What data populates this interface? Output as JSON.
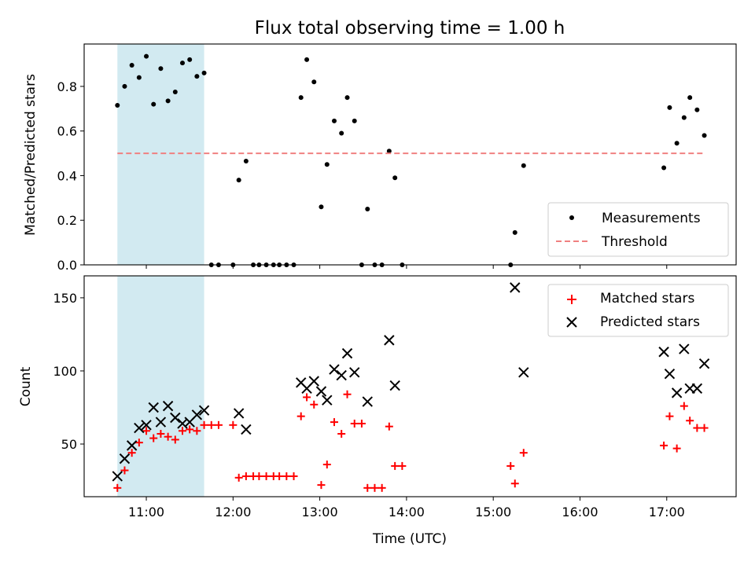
{
  "title": "Flux total observing time = 1.00 h",
  "colors": {
    "shade": "#add8e6",
    "threshold": "#f08080",
    "matched": "#ff0000",
    "predicted": "#000000",
    "measurement": "#000000"
  },
  "chart_data": [
    {
      "type": "scatter",
      "ylabel": "Matched/Predicted stars",
      "ylim": [
        0,
        0.99
      ],
      "yticks": [
        0.0,
        0.2,
        0.4,
        0.6,
        0.8
      ],
      "ytick_labels": [
        "0.0",
        "0.2",
        "0.4",
        "0.6",
        "0.8"
      ],
      "xlim": [
        "10:17",
        "17:48"
      ],
      "xticks": [
        "11:00",
        "12:00",
        "13:00",
        "14:00",
        "15:00",
        "16:00",
        "17:00"
      ],
      "shaded_span": [
        "10:40",
        "11:40"
      ],
      "legend_placement": "lower-right",
      "series": [
        {
          "name": "Measurements",
          "marker": "dot",
          "points": [
            [
              "10:40",
              0.715
            ],
            [
              "10:45",
              0.8
            ],
            [
              "10:50",
              0.895
            ],
            [
              "10:55",
              0.84
            ],
            [
              "11:00",
              0.935
            ],
            [
              "11:05",
              0.72
            ],
            [
              "11:10",
              0.88
            ],
            [
              "11:15",
              0.735
            ],
            [
              "11:20",
              0.775
            ],
            [
              "11:25",
              0.905
            ],
            [
              "11:30",
              0.92
            ],
            [
              "11:35",
              0.845
            ],
            [
              "11:40",
              0.86
            ],
            [
              "11:45",
              0.0
            ],
            [
              "11:50",
              0.0
            ],
            [
              "12:00",
              0.0
            ],
            [
              "12:04",
              0.38
            ],
            [
              "12:09",
              0.465
            ],
            [
              "12:14",
              0.0
            ],
            [
              "12:18",
              0.0
            ],
            [
              "12:23",
              0.0
            ],
            [
              "12:28",
              0.0
            ],
            [
              "12:32",
              0.0
            ],
            [
              "12:37",
              0.0
            ],
            [
              "12:42",
              0.0
            ],
            [
              "12:47",
              0.75
            ],
            [
              "12:51",
              0.92
            ],
            [
              "12:56",
              0.82
            ],
            [
              "13:01",
              0.26
            ],
            [
              "13:05",
              0.45
            ],
            [
              "13:10",
              0.645
            ],
            [
              "13:15",
              0.59
            ],
            [
              "13:19",
              0.75
            ],
            [
              "13:24",
              0.645
            ],
            [
              "13:29",
              0.0
            ],
            [
              "13:33",
              0.25
            ],
            [
              "13:38",
              0.0
            ],
            [
              "13:43",
              0.0
            ],
            [
              "13:48",
              0.51
            ],
            [
              "13:52",
              0.39
            ],
            [
              "13:57",
              0.0
            ],
            [
              "15:12",
              0.0
            ],
            [
              "15:15",
              0.145
            ],
            [
              "15:21",
              0.445
            ],
            [
              "16:58",
              0.435
            ],
            [
              "17:02",
              0.705
            ],
            [
              "17:07",
              0.545
            ],
            [
              "17:12",
              0.66
            ],
            [
              "17:16",
              0.75
            ],
            [
              "17:21",
              0.695
            ],
            [
              "17:26",
              0.58
            ]
          ]
        },
        {
          "name": "Threshold",
          "style": "dashed",
          "points": [
            [
              "10:40",
              0.5
            ],
            [
              "17:26",
              0.5
            ]
          ]
        }
      ]
    },
    {
      "type": "scatter",
      "xlabel": "Time (UTC)",
      "ylabel": "Count",
      "ylim": [
        14,
        165
      ],
      "yticks": [
        50,
        100,
        150
      ],
      "ytick_labels": [
        "50",
        "100",
        "150"
      ],
      "xlim": [
        "10:17",
        "17:48"
      ],
      "xticks": [
        "11:00",
        "12:00",
        "13:00",
        "14:00",
        "15:00",
        "16:00",
        "17:00"
      ],
      "xtick_labels": [
        "11:00",
        "12:00",
        "13:00",
        "14:00",
        "15:00",
        "16:00",
        "17:00"
      ],
      "shaded_span": [
        "10:40",
        "11:40"
      ],
      "legend_placement": "upper-right",
      "series": [
        {
          "name": "Matched stars",
          "marker": "plus",
          "points": [
            [
              "10:40",
              20
            ],
            [
              "10:45",
              32
            ],
            [
              "10:50",
              44
            ],
            [
              "10:55",
              51
            ],
            [
              "11:00",
              59
            ],
            [
              "11:05",
              54
            ],
            [
              "11:10",
              57
            ],
            [
              "11:15",
              55
            ],
            [
              "11:20",
              53
            ],
            [
              "11:25",
              59
            ],
            [
              "11:30",
              60
            ],
            [
              "11:35",
              59
            ],
            [
              "11:40",
              63
            ],
            [
              "11:45",
              63
            ],
            [
              "11:50",
              63
            ],
            [
              "12:00",
              63
            ],
            [
              "12:04",
              27
            ],
            [
              "12:09",
              28
            ],
            [
              "12:14",
              28
            ],
            [
              "12:18",
              28
            ],
            [
              "12:23",
              28
            ],
            [
              "12:28",
              28
            ],
            [
              "12:32",
              28
            ],
            [
              "12:37",
              28
            ],
            [
              "12:42",
              28
            ],
            [
              "12:47",
              69
            ],
            [
              "12:51",
              82
            ],
            [
              "12:56",
              77
            ],
            [
              "13:01",
              22
            ],
            [
              "13:05",
              36
            ],
            [
              "13:10",
              65
            ],
            [
              "13:15",
              57
            ],
            [
              "13:19",
              84
            ],
            [
              "13:24",
              64
            ],
            [
              "13:29",
              64
            ],
            [
              "13:33",
              20
            ],
            [
              "13:38",
              20
            ],
            [
              "13:43",
              20
            ],
            [
              "13:48",
              62
            ],
            [
              "13:52",
              35
            ],
            [
              "13:57",
              35
            ],
            [
              "15:12",
              35
            ],
            [
              "15:15",
              23
            ],
            [
              "15:21",
              44
            ],
            [
              "16:58",
              49
            ],
            [
              "17:02",
              69
            ],
            [
              "17:07",
              47
            ],
            [
              "17:12",
              76
            ],
            [
              "17:16",
              66
            ],
            [
              "17:21",
              61
            ],
            [
              "17:26",
              61
            ]
          ]
        },
        {
          "name": "Predicted stars",
          "marker": "x",
          "points": [
            [
              "10:40",
              28
            ],
            [
              "10:45",
              40
            ],
            [
              "10:50",
              49
            ],
            [
              "10:55",
              61
            ],
            [
              "11:00",
              63
            ],
            [
              "11:05",
              75
            ],
            [
              "11:10",
              65
            ],
            [
              "11:15",
              76
            ],
            [
              "11:20",
              68
            ],
            [
              "11:25",
              64
            ],
            [
              "11:30",
              65
            ],
            [
              "11:35",
              70
            ],
            [
              "11:40",
              73
            ],
            [
              "12:04",
              71
            ],
            [
              "12:09",
              60
            ],
            [
              "12:47",
              92
            ],
            [
              "12:51",
              88
            ],
            [
              "12:56",
              93
            ],
            [
              "13:01",
              86
            ],
            [
              "13:05",
              80
            ],
            [
              "13:10",
              101
            ],
            [
              "13:15",
              97
            ],
            [
              "13:19",
              112
            ],
            [
              "13:24",
              99
            ],
            [
              "13:33",
              79
            ],
            [
              "13:48",
              121
            ],
            [
              "13:52",
              90
            ],
            [
              "15:15",
              157
            ],
            [
              "15:21",
              99
            ],
            [
              "16:58",
              113
            ],
            [
              "17:02",
              98
            ],
            [
              "17:07",
              85
            ],
            [
              "17:12",
              115
            ],
            [
              "17:16",
              88
            ],
            [
              "17:21",
              88
            ],
            [
              "17:26",
              105
            ]
          ]
        }
      ]
    }
  ]
}
